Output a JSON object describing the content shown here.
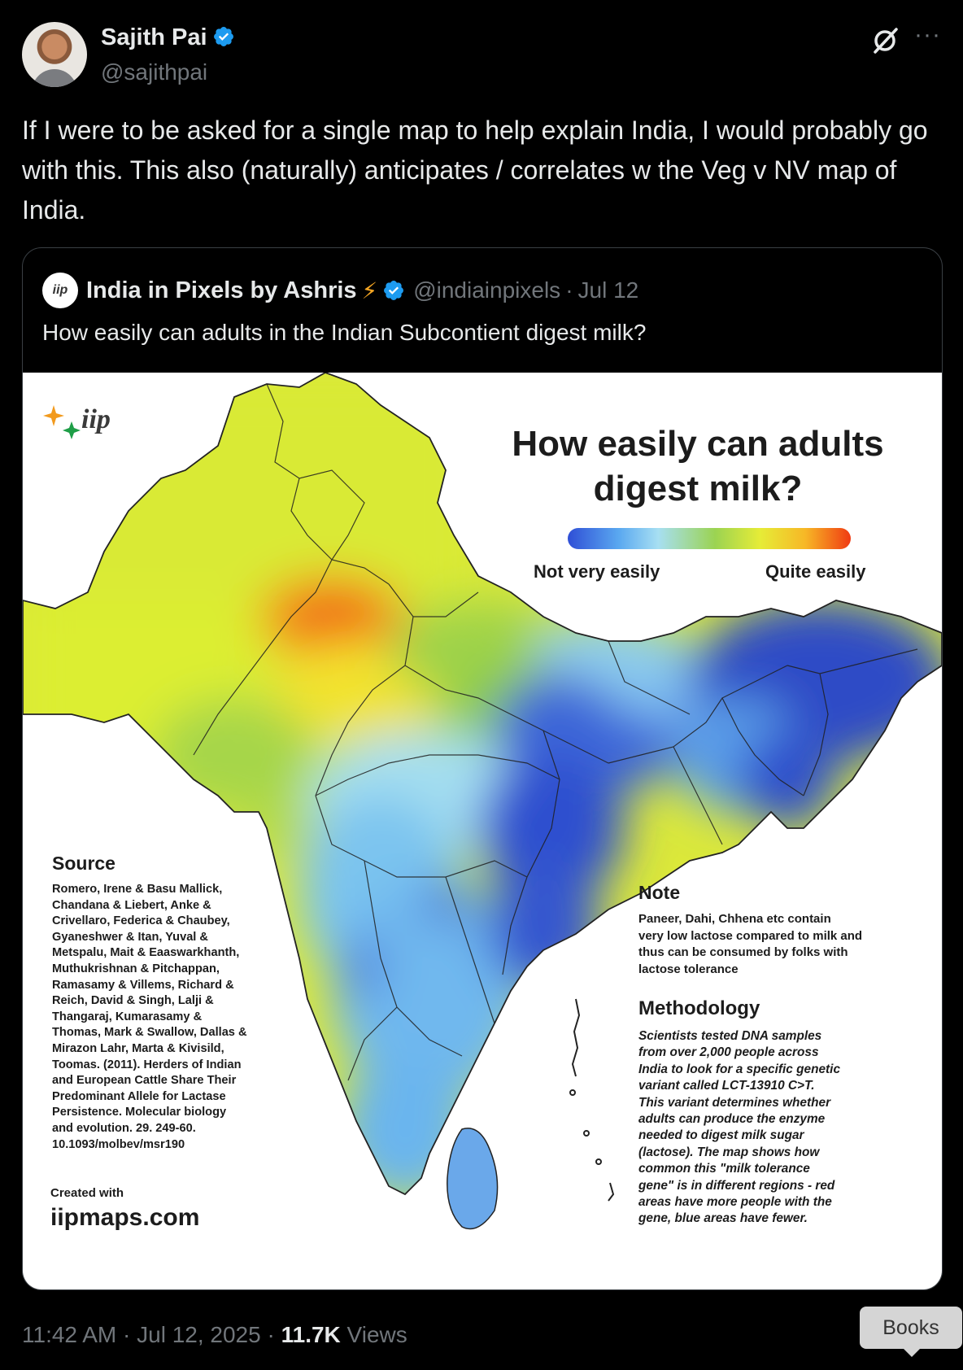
{
  "author": {
    "name": "Sajith Pai",
    "handle": "@sajithpai",
    "verified": true
  },
  "tweet": {
    "text": "If I were to be asked for a single map to help explain India, I would probably go with this. This also (naturally) anticipates / correlates w the Veg v NV map of India."
  },
  "icons": {
    "grok": "grok-slash-icon",
    "more": "more-dots-icon",
    "verified": "verified-badge-icon"
  },
  "quote": {
    "name": "India in Pixels by Ashris",
    "bolt": "⚡",
    "handle": "@indiainpixels",
    "separator": "·",
    "date": "Jul 12",
    "text": "How easily can adults in the Indian Subcontient digest milk?",
    "avatar_text": "iip"
  },
  "map": {
    "logo_text": "iip",
    "title_line1": "How easily can adults",
    "title_line2": "digest milk?",
    "legend_low": "Not very easily",
    "legend_high": "Quite easily",
    "legend_colors": [
      "#2f4fd6",
      "#5aa8f0",
      "#a7dff2",
      "#9bd352",
      "#e6ec37",
      "#f7b726",
      "#f03a12"
    ],
    "source_heading": "Source",
    "source_text": "Romero, Irene & Basu Mallick,\nChandana & Liebert, Anke &\nCrivellaro, Federica & Chaubey,\nGyaneshwer & Itan, Yuval &\nMetspalu, Mait & Eaaswarkhanth,\nMuthukrishnan & Pitchappan,\nRamasamy & Villems, Richard &\nReich, David & Singh, Lalji &\nThangaraj, Kumarasamy &\nThomas, Mark & Swallow, Dallas &\nMirazon Lahr, Marta & Kivisild,\nToomas. (2011). Herders of Indian\nand European Cattle Share Their\nPredominant Allele for Lactase\nPersistence. Molecular biology\nand evolution. 29. 249-60.\n10.1093/molbev/msr190",
    "created_label": "Created with",
    "created_site": "iipmaps.com",
    "note_heading": "Note",
    "note_text": "Paneer, Dahi, Chhena etc contain\nvery low lactose compared to milk and\nthus can be consumed by folks with\nlactose tolerance",
    "methodology_heading": "Methodology",
    "methodology_text": "Scientists tested DNA samples\nfrom over 2,000 people across\nIndia to look for a specific genetic\nvariant called LCT-13910 C>T.\nThis variant determines whether\nadults can produce the enzyme\nneeded to digest milk sugar\n(lactose). The map shows how\ncommon this \"milk tolerance\ngene\" is in different regions - red\nareas have more people with the\ngene, blue areas have fewer."
  },
  "footer": {
    "time": "11:42 AM",
    "sep1": "·",
    "date": "Jul 12, 2025",
    "sep2": "·",
    "views_count": "11.7K",
    "views_label": "Views"
  },
  "tooltip": {
    "label": "Books"
  }
}
